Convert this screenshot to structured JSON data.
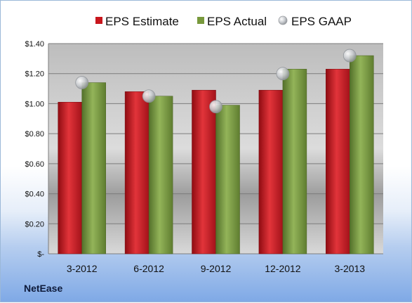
{
  "company": "NetEase",
  "chart_data": {
    "type": "bar",
    "title": "",
    "xlabel": "",
    "ylabel": "",
    "categories": [
      "3-2012",
      "6-2012",
      "9-2012",
      "12-2012",
      "3-2013"
    ],
    "series": [
      {
        "name": "EPS Estimate",
        "kind": "bar",
        "color": "#c8161d",
        "values": [
          1.01,
          1.08,
          1.09,
          1.09,
          1.23
        ]
      },
      {
        "name": "EPS Actual",
        "kind": "bar",
        "color": "#78993c",
        "values": [
          1.14,
          1.05,
          0.99,
          1.23,
          1.32
        ]
      },
      {
        "name": "EPS GAAP",
        "kind": "marker",
        "color": "#b9bcc0",
        "values": [
          1.14,
          1.05,
          0.98,
          1.2,
          1.32
        ]
      }
    ],
    "ylim": [
      0,
      1.4
    ],
    "yticks": [
      0,
      0.2,
      0.4,
      0.6,
      0.8,
      1.0,
      1.2,
      1.4
    ],
    "ytick_labels": [
      "$-",
      "$0.20",
      "$0.40",
      "$0.60",
      "$0.80",
      "$1.00",
      "$1.20",
      "$1.40"
    ],
    "grid": true,
    "legend_position": "top"
  }
}
